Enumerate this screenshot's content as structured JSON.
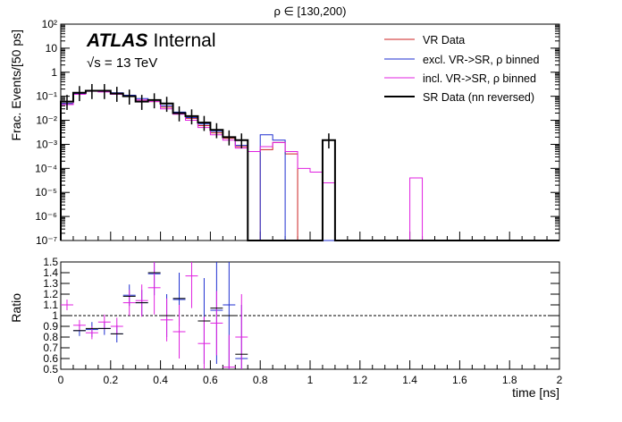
{
  "chart_data": [
    {
      "type": "step-histogram",
      "title": "ρ ∈ [130,200)",
      "ylabel": "Frac. Events/[50 ps]",
      "yscale": "log",
      "ylim": [
        1e-07,
        100
      ],
      "xlim": [
        0,
        2
      ],
      "ytick_labels": [
        "10⁻⁷",
        "10⁻⁶",
        "10⁻⁵",
        "10⁻⁴",
        "10⁻³",
        "10⁻²",
        "10⁻¹",
        "1",
        "10",
        "10²"
      ],
      "atlas_label": "ATLAS",
      "atlas_sub": "Internal",
      "energy_label": "√s = 13 TeV",
      "bin_edges": [
        0,
        0.05,
        0.1,
        0.15,
        0.2,
        0.25,
        0.3,
        0.35,
        0.4,
        0.45,
        0.5,
        0.55,
        0.6,
        0.65,
        0.7,
        0.75,
        0.8,
        0.85,
        0.9,
        0.95,
        1.0,
        1.05,
        1.1,
        1.15,
        1.2,
        1.25,
        1.3,
        1.35,
        1.4,
        1.45,
        1.5,
        1.55,
        1.6,
        1.65,
        1.7,
        1.75,
        1.8,
        1.85,
        1.9,
        1.95,
        2.0
      ],
      "series": [
        {
          "name": "VR Data",
          "color": "#cc2222",
          "width": 1,
          "values": [
            0.05,
            0.13,
            0.17,
            0.16,
            0.13,
            0.1,
            0.07,
            0.06,
            0.035,
            0.02,
            0.012,
            0.006,
            0.003,
            0.0018,
            0.0008,
            0,
            0.0006,
            0.0012,
            0.0004,
            0,
            0,
            2.5e-05,
            0,
            0,
            0,
            0,
            0,
            0,
            0,
            0,
            0,
            0,
            0,
            0,
            0,
            0,
            0,
            0,
            0,
            0
          ]
        },
        {
          "name": "excl. VR->SR, ρ binned",
          "color": "#1f2fd0",
          "width": 1,
          "values": [
            0.05,
            0.13,
            0.17,
            0.16,
            0.14,
            0.11,
            0.08,
            0.07,
            0.04,
            0.022,
            0.013,
            0.007,
            0.0035,
            0.002,
            0.0009,
            0,
            0.0025,
            0.0015,
            0,
            0,
            0,
            0,
            0,
            0,
            0,
            0,
            0,
            0,
            0,
            0,
            0,
            0,
            0,
            0,
            0,
            0,
            0,
            0,
            0,
            0
          ]
        },
        {
          "name": "incl. VR->SR, ρ binned",
          "color": "#e020e0",
          "width": 1,
          "values": [
            0.045,
            0.12,
            0.16,
            0.15,
            0.12,
            0.1,
            0.07,
            0.06,
            0.03,
            0.018,
            0.01,
            0.005,
            0.0025,
            0.0015,
            0.0007,
            0.0005,
            0.0008,
            0.0012,
            0.0005,
            0.0001,
            7e-05,
            2.5e-05,
            0,
            0,
            0,
            0,
            0,
            0,
            4e-05,
            0,
            0,
            0,
            0,
            0,
            0,
            0,
            0,
            0,
            0,
            0
          ]
        },
        {
          "name": "SR Data (nn reversed)",
          "color": "#000000",
          "width": 2,
          "values": [
            0.06,
            0.14,
            0.17,
            0.17,
            0.13,
            0.1,
            0.06,
            0.07,
            0.05,
            0.02,
            0.015,
            0.008,
            0.004,
            0.002,
            0.0015,
            0,
            0,
            0,
            0,
            0,
            0,
            0.0015,
            0,
            0,
            0,
            0,
            0,
            0,
            0,
            0,
            0,
            0,
            0,
            0,
            0,
            0,
            0,
            0,
            0,
            0
          ]
        }
      ]
    },
    {
      "type": "ratio",
      "ylabel": "Ratio",
      "xlabel": "time [ns]",
      "ylim": [
        0.5,
        1.5
      ],
      "xlim": [
        0,
        2
      ],
      "reference_line": 1,
      "ytick_labels": [
        "0.5",
        "0.6",
        "0.7",
        "0.8",
        "0.9",
        "1",
        "1.1",
        "1.2",
        "1.3",
        "1.4",
        "1.5"
      ],
      "xtick_labels": [
        "0",
        "0.2",
        "0.4",
        "0.6",
        "0.8",
        "1",
        "1.2",
        "1.4",
        "1.6",
        "1.8",
        "2"
      ],
      "series": [
        {
          "name": "excl. VR->SR, ρ binned",
          "color": "#1f2fd0",
          "points": [
            [
              0.075,
              0.86,
              0.05
            ],
            [
              0.125,
              0.87,
              0.07
            ],
            [
              0.175,
              0.88,
              0.06
            ],
            [
              0.225,
              0.83,
              0.08
            ],
            [
              0.275,
              1.19,
              0.1
            ],
            [
              0.325,
              1.12,
              0.12
            ],
            [
              0.375,
              1.39,
              0.2
            ],
            [
              0.425,
              1.0,
              0.2
            ],
            [
              0.475,
              1.15,
              0.25
            ],
            [
              0.575,
              0.95,
              0.4
            ],
            [
              0.625,
              1.05,
              0.5
            ],
            [
              0.675,
              1.1,
              0.6
            ],
            [
              0.725,
              0.6,
              0.5
            ]
          ]
        },
        {
          "name": "incl. VR->SR, ρ binned",
          "color": "#e020e0",
          "points": [
            [
              0.025,
              1.1,
              0.05
            ],
            [
              0.075,
              0.91,
              0.05
            ],
            [
              0.125,
              0.84,
              0.06
            ],
            [
              0.175,
              0.94,
              0.07
            ],
            [
              0.225,
              0.9,
              0.08
            ],
            [
              0.275,
              1.12,
              0.12
            ],
            [
              0.325,
              1.14,
              0.15
            ],
            [
              0.375,
              1.26,
              0.25
            ],
            [
              0.425,
              0.96,
              0.2
            ],
            [
              0.475,
              0.85,
              0.25
            ],
            [
              0.525,
              1.37,
              0.3
            ],
            [
              0.575,
              0.74,
              0.25
            ],
            [
              0.625,
              0.93,
              0.3
            ],
            [
              0.675,
              0.52,
              0.3
            ],
            [
              0.725,
              0.8,
              0.4
            ]
          ]
        },
        {
          "name": "SR Data (nn reversed)",
          "color": "#000000",
          "points": [
            [
              0.075,
              0.86,
              0
            ],
            [
              0.125,
              0.88,
              0
            ],
            [
              0.175,
              0.88,
              0
            ],
            [
              0.225,
              0.83,
              0
            ],
            [
              0.275,
              1.18,
              0
            ],
            [
              0.325,
              1.12,
              0
            ],
            [
              0.375,
              1.4,
              0
            ],
            [
              0.425,
              1.0,
              0
            ],
            [
              0.475,
              1.16,
              0
            ],
            [
              0.575,
              0.95,
              0
            ],
            [
              0.625,
              1.07,
              0
            ],
            [
              0.675,
              1.0,
              0
            ],
            [
              0.725,
              0.64,
              0
            ]
          ]
        }
      ]
    }
  ]
}
